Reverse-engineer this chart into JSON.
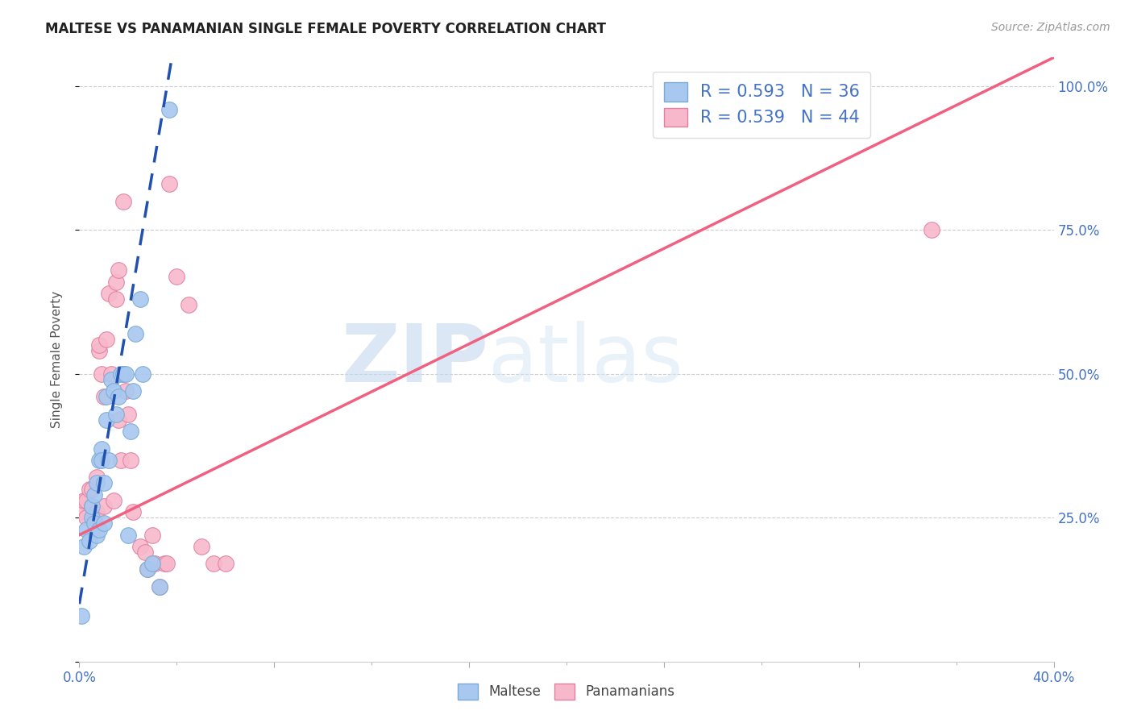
{
  "title": "MALTESE VS PANAMANIAN SINGLE FEMALE POVERTY CORRELATION CHART",
  "source": "Source: ZipAtlas.com",
  "ylabel": "Single Female Poverty",
  "background_color": "#ffffff",
  "maltese_color": "#a8c8f0",
  "maltese_edge_color": "#7aaad4",
  "panamanian_color": "#f8b8cc",
  "panamanian_edge_color": "#e080a0",
  "maltese_R": 0.593,
  "maltese_N": 36,
  "panamanian_R": 0.539,
  "panamanian_N": 44,
  "maltese_line_color": "#2050b0",
  "panamanian_line_color": "#f06080",
  "gridline_color": "#cccccc",
  "watermark_zip": "ZIP",
  "watermark_atlas": "atlas",
  "x_min": 0.0,
  "x_max": 0.4,
  "y_min": 0.0,
  "y_max": 1.05,
  "maltese_line_x0": 0.0,
  "maltese_line_y0": 0.1,
  "maltese_line_x1": 0.038,
  "maltese_line_y1": 1.05,
  "panamanian_line_x0": 0.0,
  "panamanian_line_y0": 0.22,
  "panamanian_line_x1": 0.4,
  "panamanian_line_y1": 1.05,
  "maltese_x": [
    0.001,
    0.002,
    0.003,
    0.004,
    0.005,
    0.005,
    0.006,
    0.006,
    0.007,
    0.007,
    0.008,
    0.008,
    0.009,
    0.009,
    0.01,
    0.01,
    0.011,
    0.011,
    0.012,
    0.013,
    0.014,
    0.015,
    0.016,
    0.017,
    0.018,
    0.019,
    0.02,
    0.021,
    0.022,
    0.023,
    0.025,
    0.026,
    0.028,
    0.03,
    0.033,
    0.037
  ],
  "maltese_y": [
    0.08,
    0.2,
    0.23,
    0.21,
    0.25,
    0.27,
    0.24,
    0.29,
    0.22,
    0.31,
    0.23,
    0.35,
    0.37,
    0.35,
    0.24,
    0.31,
    0.42,
    0.46,
    0.35,
    0.49,
    0.47,
    0.43,
    0.46,
    0.5,
    0.5,
    0.5,
    0.22,
    0.4,
    0.47,
    0.57,
    0.63,
    0.5,
    0.16,
    0.17,
    0.13,
    0.96
  ],
  "panamanian_x": [
    0.001,
    0.002,
    0.003,
    0.003,
    0.004,
    0.005,
    0.005,
    0.006,
    0.007,
    0.007,
    0.008,
    0.008,
    0.009,
    0.01,
    0.01,
    0.011,
    0.012,
    0.013,
    0.014,
    0.015,
    0.015,
    0.016,
    0.016,
    0.017,
    0.018,
    0.019,
    0.02,
    0.021,
    0.022,
    0.025,
    0.027,
    0.028,
    0.03,
    0.031,
    0.033,
    0.035,
    0.036,
    0.037,
    0.04,
    0.045,
    0.05,
    0.055,
    0.06,
    0.35
  ],
  "panamanian_y": [
    0.26,
    0.28,
    0.25,
    0.28,
    0.3,
    0.27,
    0.3,
    0.25,
    0.26,
    0.32,
    0.54,
    0.55,
    0.5,
    0.27,
    0.46,
    0.56,
    0.64,
    0.5,
    0.28,
    0.63,
    0.66,
    0.42,
    0.68,
    0.35,
    0.8,
    0.47,
    0.43,
    0.35,
    0.26,
    0.2,
    0.19,
    0.16,
    0.22,
    0.17,
    0.13,
    0.17,
    0.17,
    0.83,
    0.67,
    0.62,
    0.2,
    0.17,
    0.17,
    0.75
  ]
}
